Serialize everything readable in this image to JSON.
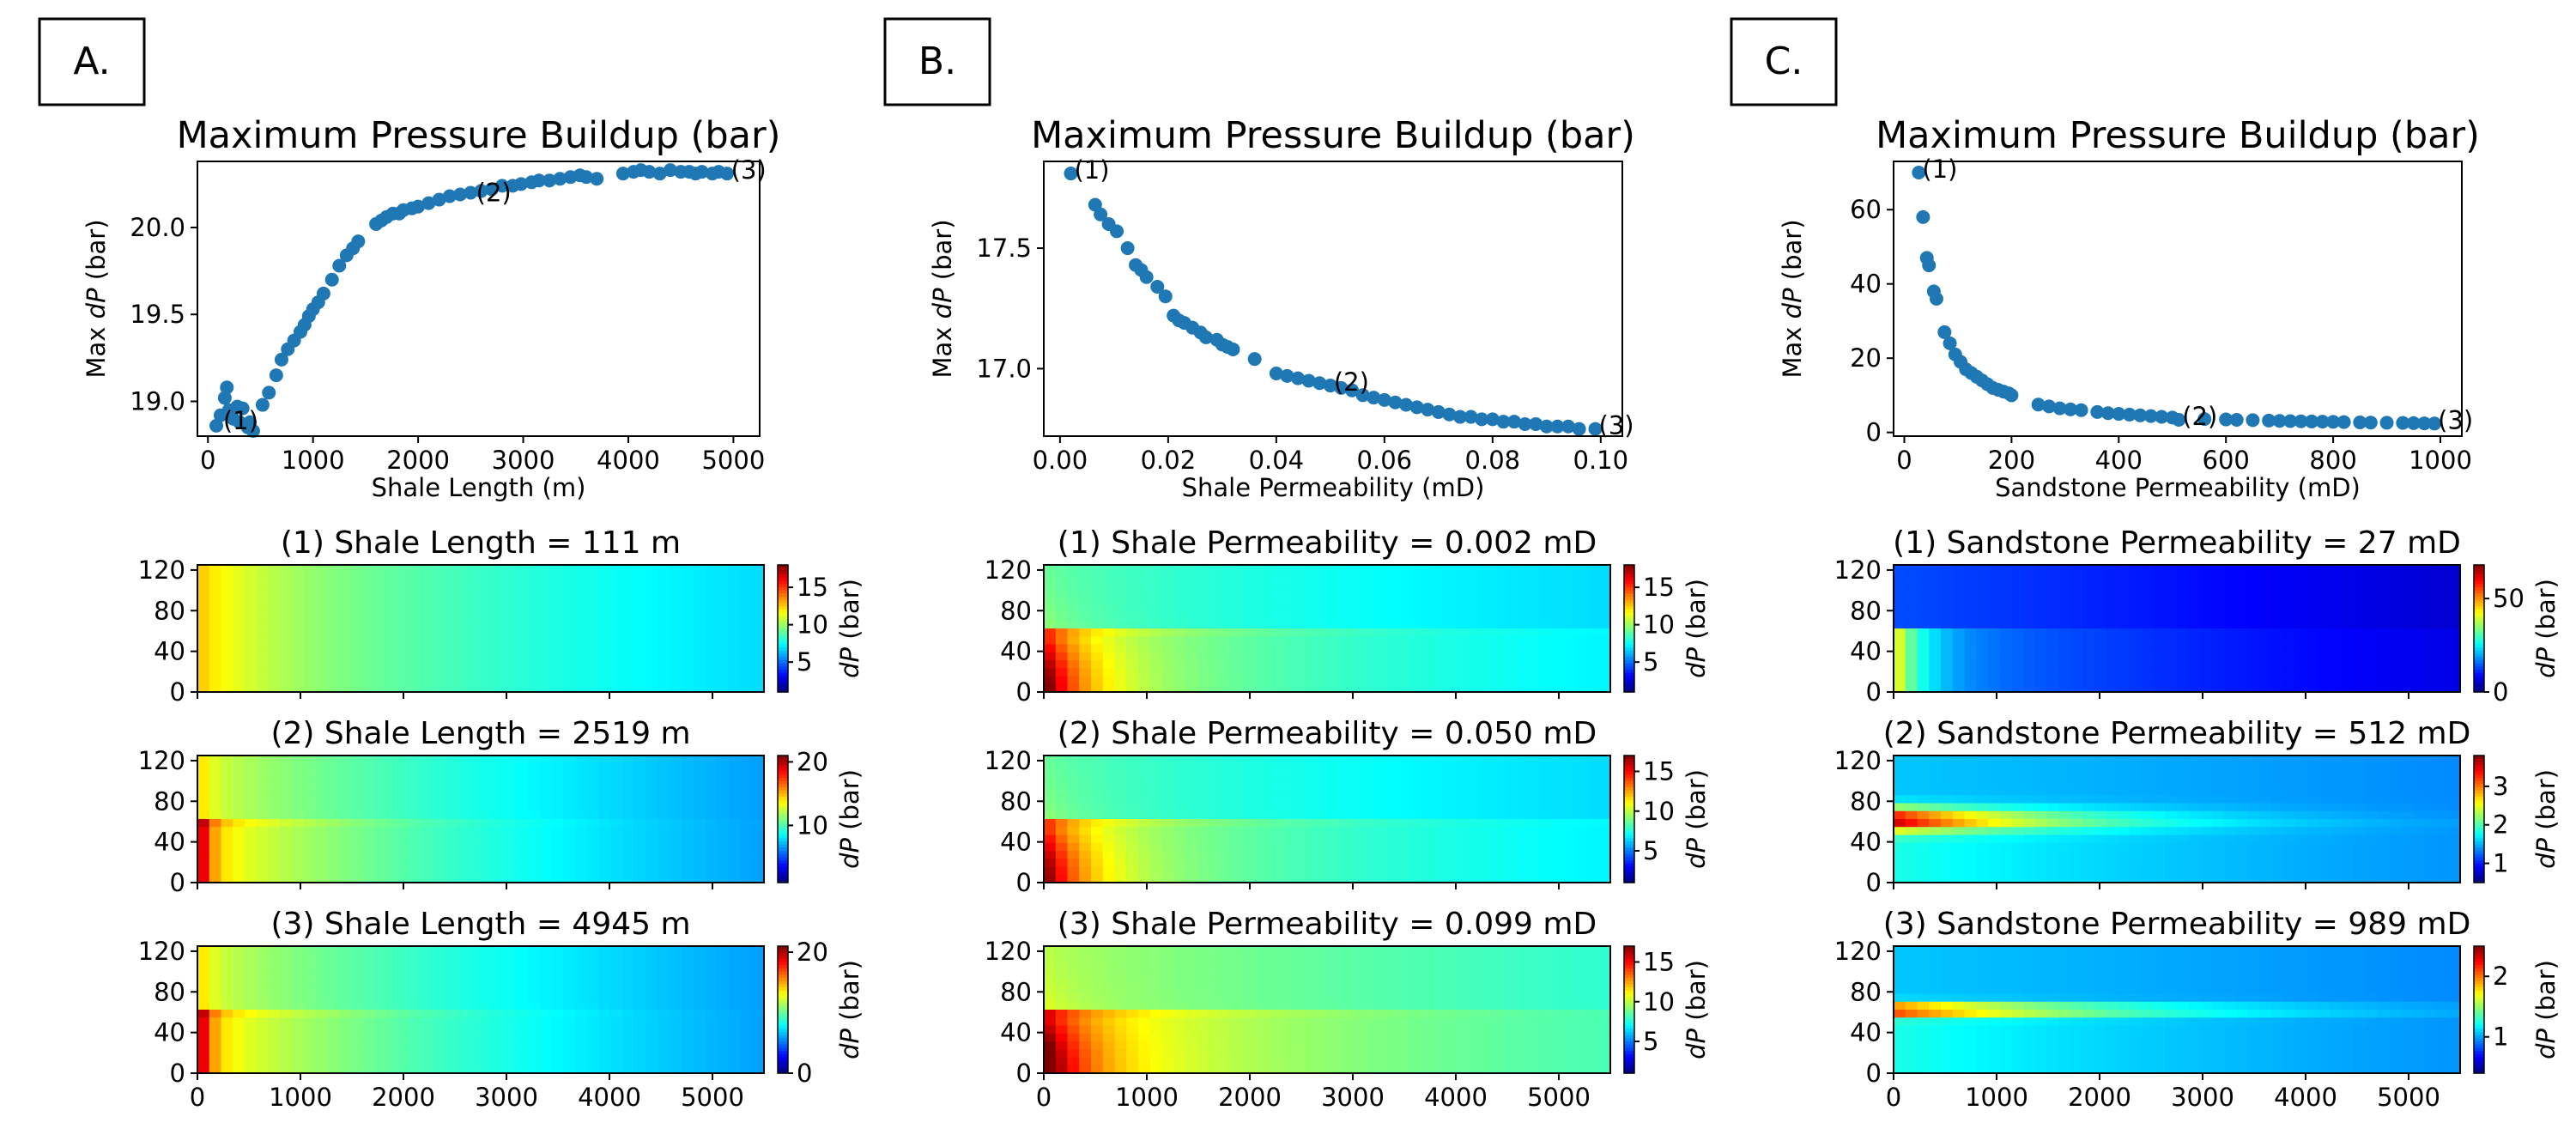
{
  "panels": [
    {
      "letter": "A.",
      "scatter": {
        "title": "Maximum Pressure Buildup (bar)",
        "xlabel": "Shale Length (m)",
        "ylabel_pre": "Max ",
        "ylabel_var": "dP",
        "ylabel_post": " (bar)",
        "xlim": [
          -100,
          5250
        ],
        "ylim": [
          18.8,
          20.38
        ],
        "xticks": [
          0,
          1000,
          2000,
          3000,
          4000,
          5000
        ],
        "xtick_labels": [
          "0",
          "1000",
          "2000",
          "3000",
          "4000",
          "5000"
        ],
        "yticks": [
          19.0,
          19.5,
          20.0
        ],
        "ytick_labels": [
          "19.0",
          "19.5",
          "20.0"
        ],
        "marked": [
          {
            "label": "(1)",
            "x": 111,
            "y": 18.87
          },
          {
            "label": "(2)",
            "x": 2519,
            "y": 20.18
          },
          {
            "label": "(3)",
            "x": 4945,
            "y": 20.31
          }
        ]
      },
      "heatmaps": [
        {
          "title": "(1) Shale Length = 111 m",
          "cb_ticks": [
            5,
            10,
            15
          ],
          "cb_labels": [
            "5",
            "10",
            "15"
          ],
          "cb_range": [
            1,
            18
          ]
        },
        {
          "title": "(2) Shale Length = 2519 m",
          "cb_ticks": [
            10,
            20
          ],
          "cb_labels": [
            "10",
            "20"
          ],
          "cb_range": [
            1,
            21
          ]
        },
        {
          "title": "(3) Shale Length = 4945 m",
          "cb_ticks": [
            0,
            20
          ],
          "cb_labels": [
            "0",
            "20"
          ],
          "cb_range": [
            0,
            21
          ]
        }
      ]
    },
    {
      "letter": "B.",
      "scatter": {
        "title": "Maximum Pressure Buildup (bar)",
        "xlabel": "Shale Permeability (mD)",
        "ylabel_pre": "Max ",
        "ylabel_var": "dP",
        "ylabel_post": " (bar)",
        "xlim": [
          -0.003,
          0.104
        ],
        "ylim": [
          16.72,
          17.86
        ],
        "xticks": [
          0.0,
          0.02,
          0.04,
          0.06,
          0.08,
          0.1
        ],
        "xtick_labels": [
          "0.00",
          "0.02",
          "0.04",
          "0.06",
          "0.08",
          "0.10"
        ],
        "yticks": [
          17.0,
          17.5
        ],
        "ytick_labels": [
          "17.0",
          "17.5"
        ],
        "marked": [
          {
            "label": "(1)",
            "x": 0.002,
            "y": 17.81
          },
          {
            "label": "(2)",
            "x": 0.05,
            "y": 16.93
          },
          {
            "label": "(3)",
            "x": 0.099,
            "y": 16.75
          }
        ]
      },
      "heatmaps": [
        {
          "title": "(1) Shale Permeability = 0.002 mD",
          "cb_ticks": [
            5,
            10,
            15
          ],
          "cb_labels": [
            "5",
            "10",
            "15"
          ],
          "cb_range": [
            1,
            18
          ]
        },
        {
          "title": "(2) Shale Permeability = 0.050 mD",
          "cb_ticks": [
            5,
            10,
            15
          ],
          "cb_labels": [
            "5",
            "10",
            "15"
          ],
          "cb_range": [
            1,
            17
          ]
        },
        {
          "title": "(3) Shale Permeability = 0.099 mD",
          "cb_ticks": [
            5,
            10,
            15
          ],
          "cb_labels": [
            "5",
            "10",
            "15"
          ],
          "cb_range": [
            1,
            17
          ]
        }
      ]
    },
    {
      "letter": "C.",
      "scatter": {
        "title": "Maximum Pressure Buildup (bar)",
        "xlabel": "Sandstone Permeability (mD)",
        "ylabel_pre": "Max ",
        "ylabel_var": "dP",
        "ylabel_post": " (bar)",
        "xlim": [
          -20,
          1040
        ],
        "ylim": [
          -1,
          73
        ],
        "xticks": [
          0,
          200,
          400,
          600,
          800,
          1000
        ],
        "xtick_labels": [
          "0",
          "200",
          "400",
          "600",
          "800",
          "1000"
        ],
        "yticks": [
          0,
          20,
          40,
          60
        ],
        "ytick_labels": [
          "0",
          "20",
          "40",
          "60"
        ],
        "marked": [
          {
            "label": "(1)",
            "x": 27,
            "y": 70
          },
          {
            "label": "(2)",
            "x": 512,
            "y": 3.4
          },
          {
            "label": "(3)",
            "x": 989,
            "y": 2.4
          }
        ]
      },
      "heatmaps": [
        {
          "title": "(1) Sandstone Permeability = 27 mD",
          "cb_ticks": [
            0,
            50
          ],
          "cb_labels": [
            "0",
            "50"
          ],
          "cb_range": [
            0,
            68
          ]
        },
        {
          "title": "(2) Sandstone Permeability = 512 mD",
          "cb_ticks": [
            1,
            2,
            3
          ],
          "cb_labels": [
            "1",
            "2",
            "3"
          ],
          "cb_range": [
            0.5,
            3.8
          ]
        },
        {
          "title": "(3) Sandstone Permeability = 989 mD",
          "cb_ticks": [
            1,
            2
          ],
          "cb_labels": [
            "1",
            "2"
          ],
          "cb_range": [
            0.4,
            2.5
          ]
        }
      ]
    }
  ],
  "heatmap_axes": {
    "xlim": [
      0,
      5500
    ],
    "ylim": [
      0,
      125
    ],
    "xticks": [
      0,
      1000,
      2000,
      3000,
      4000,
      5000
    ],
    "xtick_labels": [
      "0",
      "1000",
      "2000",
      "3000",
      "4000",
      "5000"
    ],
    "yticks": [
      0,
      40,
      80,
      120
    ],
    "ytick_labels": [
      "0",
      "40",
      "80",
      "120"
    ],
    "cb_label_var": "dP",
    "cb_label_post": " (bar)"
  },
  "colors": {
    "scatter_point": "#1f77b4",
    "colormap": "jet"
  },
  "chart_data": [
    {
      "type": "scatter",
      "title": "Maximum Pressure Buildup (bar)",
      "xlabel": "Shale Length (m)",
      "ylabel": "Max dP (bar)",
      "xlim": [
        -100,
        5250
      ],
      "ylim": [
        18.8,
        20.38
      ],
      "points": [
        [
          80,
          18.86
        ],
        [
          120,
          18.92
        ],
        [
          160,
          19.02
        ],
        [
          180,
          19.08
        ],
        [
          200,
          18.95
        ],
        [
          240,
          18.9
        ],
        [
          280,
          18.97
        ],
        [
          300,
          18.88
        ],
        [
          330,
          18.96
        ],
        [
          380,
          18.85
        ],
        [
          400,
          18.88
        ],
        [
          430,
          18.83
        ],
        [
          520,
          18.98
        ],
        [
          580,
          19.05
        ],
        [
          650,
          19.15
        ],
        [
          700,
          19.24
        ],
        [
          760,
          19.3
        ],
        [
          820,
          19.35
        ],
        [
          880,
          19.4
        ],
        [
          920,
          19.44
        ],
        [
          960,
          19.49
        ],
        [
          1000,
          19.53
        ],
        [
          1050,
          19.57
        ],
        [
          1100,
          19.62
        ],
        [
          1180,
          19.7
        ],
        [
          1250,
          19.78
        ],
        [
          1320,
          19.84
        ],
        [
          1380,
          19.88
        ],
        [
          1430,
          19.92
        ],
        [
          1600,
          20.02
        ],
        [
          1650,
          20.04
        ],
        [
          1700,
          20.06
        ],
        [
          1760,
          20.08
        ],
        [
          1820,
          20.08
        ],
        [
          1860,
          20.1
        ],
        [
          1940,
          20.11
        ],
        [
          2000,
          20.12
        ],
        [
          2100,
          20.14
        ],
        [
          2200,
          20.16
        ],
        [
          2300,
          20.18
        ],
        [
          2400,
          20.19
        ],
        [
          2500,
          20.2
        ],
        [
          2600,
          20.21
        ],
        [
          2700,
          20.22
        ],
        [
          2800,
          20.24
        ],
        [
          2900,
          20.24
        ],
        [
          2980,
          20.25
        ],
        [
          3080,
          20.26
        ],
        [
          3150,
          20.27
        ],
        [
          3250,
          20.27
        ],
        [
          3350,
          20.28
        ],
        [
          3450,
          20.29
        ],
        [
          3540,
          20.3
        ],
        [
          3600,
          20.29
        ],
        [
          3700,
          20.28
        ],
        [
          3950,
          20.31
        ],
        [
          4050,
          20.32
        ],
        [
          4120,
          20.33
        ],
        [
          4200,
          20.32
        ],
        [
          4300,
          20.31
        ],
        [
          4400,
          20.33
        ],
        [
          4500,
          20.32
        ],
        [
          4580,
          20.32
        ],
        [
          4640,
          20.31
        ],
        [
          4700,
          20.32
        ],
        [
          4800,
          20.31
        ],
        [
          4860,
          20.32
        ],
        [
          4940,
          20.31
        ]
      ]
    },
    {
      "type": "scatter",
      "title": "Maximum Pressure Buildup (bar)",
      "xlabel": "Shale Permeability (mD)",
      "ylabel": "Max dP (bar)",
      "xlim": [
        -0.003,
        0.104
      ],
      "ylim": [
        16.72,
        17.86
      ],
      "points": [
        [
          0.002,
          17.81
        ],
        [
          0.0065,
          17.68
        ],
        [
          0.0075,
          17.64
        ],
        [
          0.009,
          17.6
        ],
        [
          0.0105,
          17.57
        ],
        [
          0.0125,
          17.5
        ],
        [
          0.014,
          17.43
        ],
        [
          0.015,
          17.41
        ],
        [
          0.016,
          17.38
        ],
        [
          0.018,
          17.34
        ],
        [
          0.0195,
          17.3
        ],
        [
          0.021,
          17.22
        ],
        [
          0.022,
          17.2
        ],
        [
          0.023,
          17.19
        ],
        [
          0.0245,
          17.17
        ],
        [
          0.026,
          17.15
        ],
        [
          0.027,
          17.13
        ],
        [
          0.029,
          17.12
        ],
        [
          0.03,
          17.1
        ],
        [
          0.031,
          17.09
        ],
        [
          0.032,
          17.08
        ],
        [
          0.036,
          17.04
        ],
        [
          0.04,
          16.98
        ],
        [
          0.042,
          16.97
        ],
        [
          0.044,
          16.96
        ],
        [
          0.046,
          16.95
        ],
        [
          0.048,
          16.94
        ],
        [
          0.05,
          16.93
        ],
        [
          0.052,
          16.92
        ],
        [
          0.054,
          16.91
        ],
        [
          0.056,
          16.89
        ],
        [
          0.058,
          16.88
        ],
        [
          0.06,
          16.87
        ],
        [
          0.062,
          16.86
        ],
        [
          0.064,
          16.85
        ],
        [
          0.066,
          16.84
        ],
        [
          0.068,
          16.83
        ],
        [
          0.07,
          16.82
        ],
        [
          0.072,
          16.81
        ],
        [
          0.074,
          16.8
        ],
        [
          0.076,
          16.8
        ],
        [
          0.078,
          16.79
        ],
        [
          0.08,
          16.79
        ],
        [
          0.082,
          16.78
        ],
        [
          0.084,
          16.78
        ],
        [
          0.086,
          16.77
        ],
        [
          0.088,
          16.77
        ],
        [
          0.09,
          16.76
        ],
        [
          0.092,
          16.76
        ],
        [
          0.094,
          16.76
        ],
        [
          0.096,
          16.75
        ],
        [
          0.099,
          16.75
        ]
      ]
    },
    {
      "type": "scatter",
      "title": "Maximum Pressure Buildup (bar)",
      "xlabel": "Sandstone Permeability (mD)",
      "ylabel": "Max dP (bar)",
      "xlim": [
        -20,
        1040
      ],
      "ylim": [
        -1,
        73
      ],
      "points": [
        [
          27,
          70
        ],
        [
          35,
          58
        ],
        [
          42,
          47
        ],
        [
          46,
          45
        ],
        [
          55,
          38
        ],
        [
          60,
          36
        ],
        [
          75,
          27
        ],
        [
          85,
          24
        ],
        [
          95,
          21
        ],
        [
          105,
          19
        ],
        [
          115,
          17
        ],
        [
          125,
          16
        ],
        [
          135,
          15
        ],
        [
          145,
          14
        ],
        [
          155,
          13
        ],
        [
          165,
          12
        ],
        [
          175,
          11.5
        ],
        [
          185,
          11
        ],
        [
          195,
          10.5
        ],
        [
          200,
          10
        ],
        [
          250,
          7.5
        ],
        [
          270,
          7
        ],
        [
          290,
          6.5
        ],
        [
          310,
          6.2
        ],
        [
          330,
          6
        ],
        [
          360,
          5.5
        ],
        [
          380,
          5.2
        ],
        [
          400,
          5
        ],
        [
          420,
          4.8
        ],
        [
          440,
          4.6
        ],
        [
          460,
          4.4
        ],
        [
          480,
          4.2
        ],
        [
          500,
          4
        ],
        [
          512,
          3.4
        ],
        [
          560,
          3.6
        ],
        [
          600,
          3.5
        ],
        [
          620,
          3.4
        ],
        [
          650,
          3.3
        ],
        [
          680,
          3.2
        ],
        [
          700,
          3.1
        ],
        [
          720,
          3.05
        ],
        [
          740,
          3
        ],
        [
          760,
          2.95
        ],
        [
          780,
          2.9
        ],
        [
          800,
          2.85
        ],
        [
          820,
          2.8
        ],
        [
          850,
          2.7
        ],
        [
          870,
          2.65
        ],
        [
          900,
          2.6
        ],
        [
          930,
          2.55
        ],
        [
          950,
          2.5
        ],
        [
          970,
          2.45
        ],
        [
          989,
          2.4
        ]
      ]
    }
  ]
}
